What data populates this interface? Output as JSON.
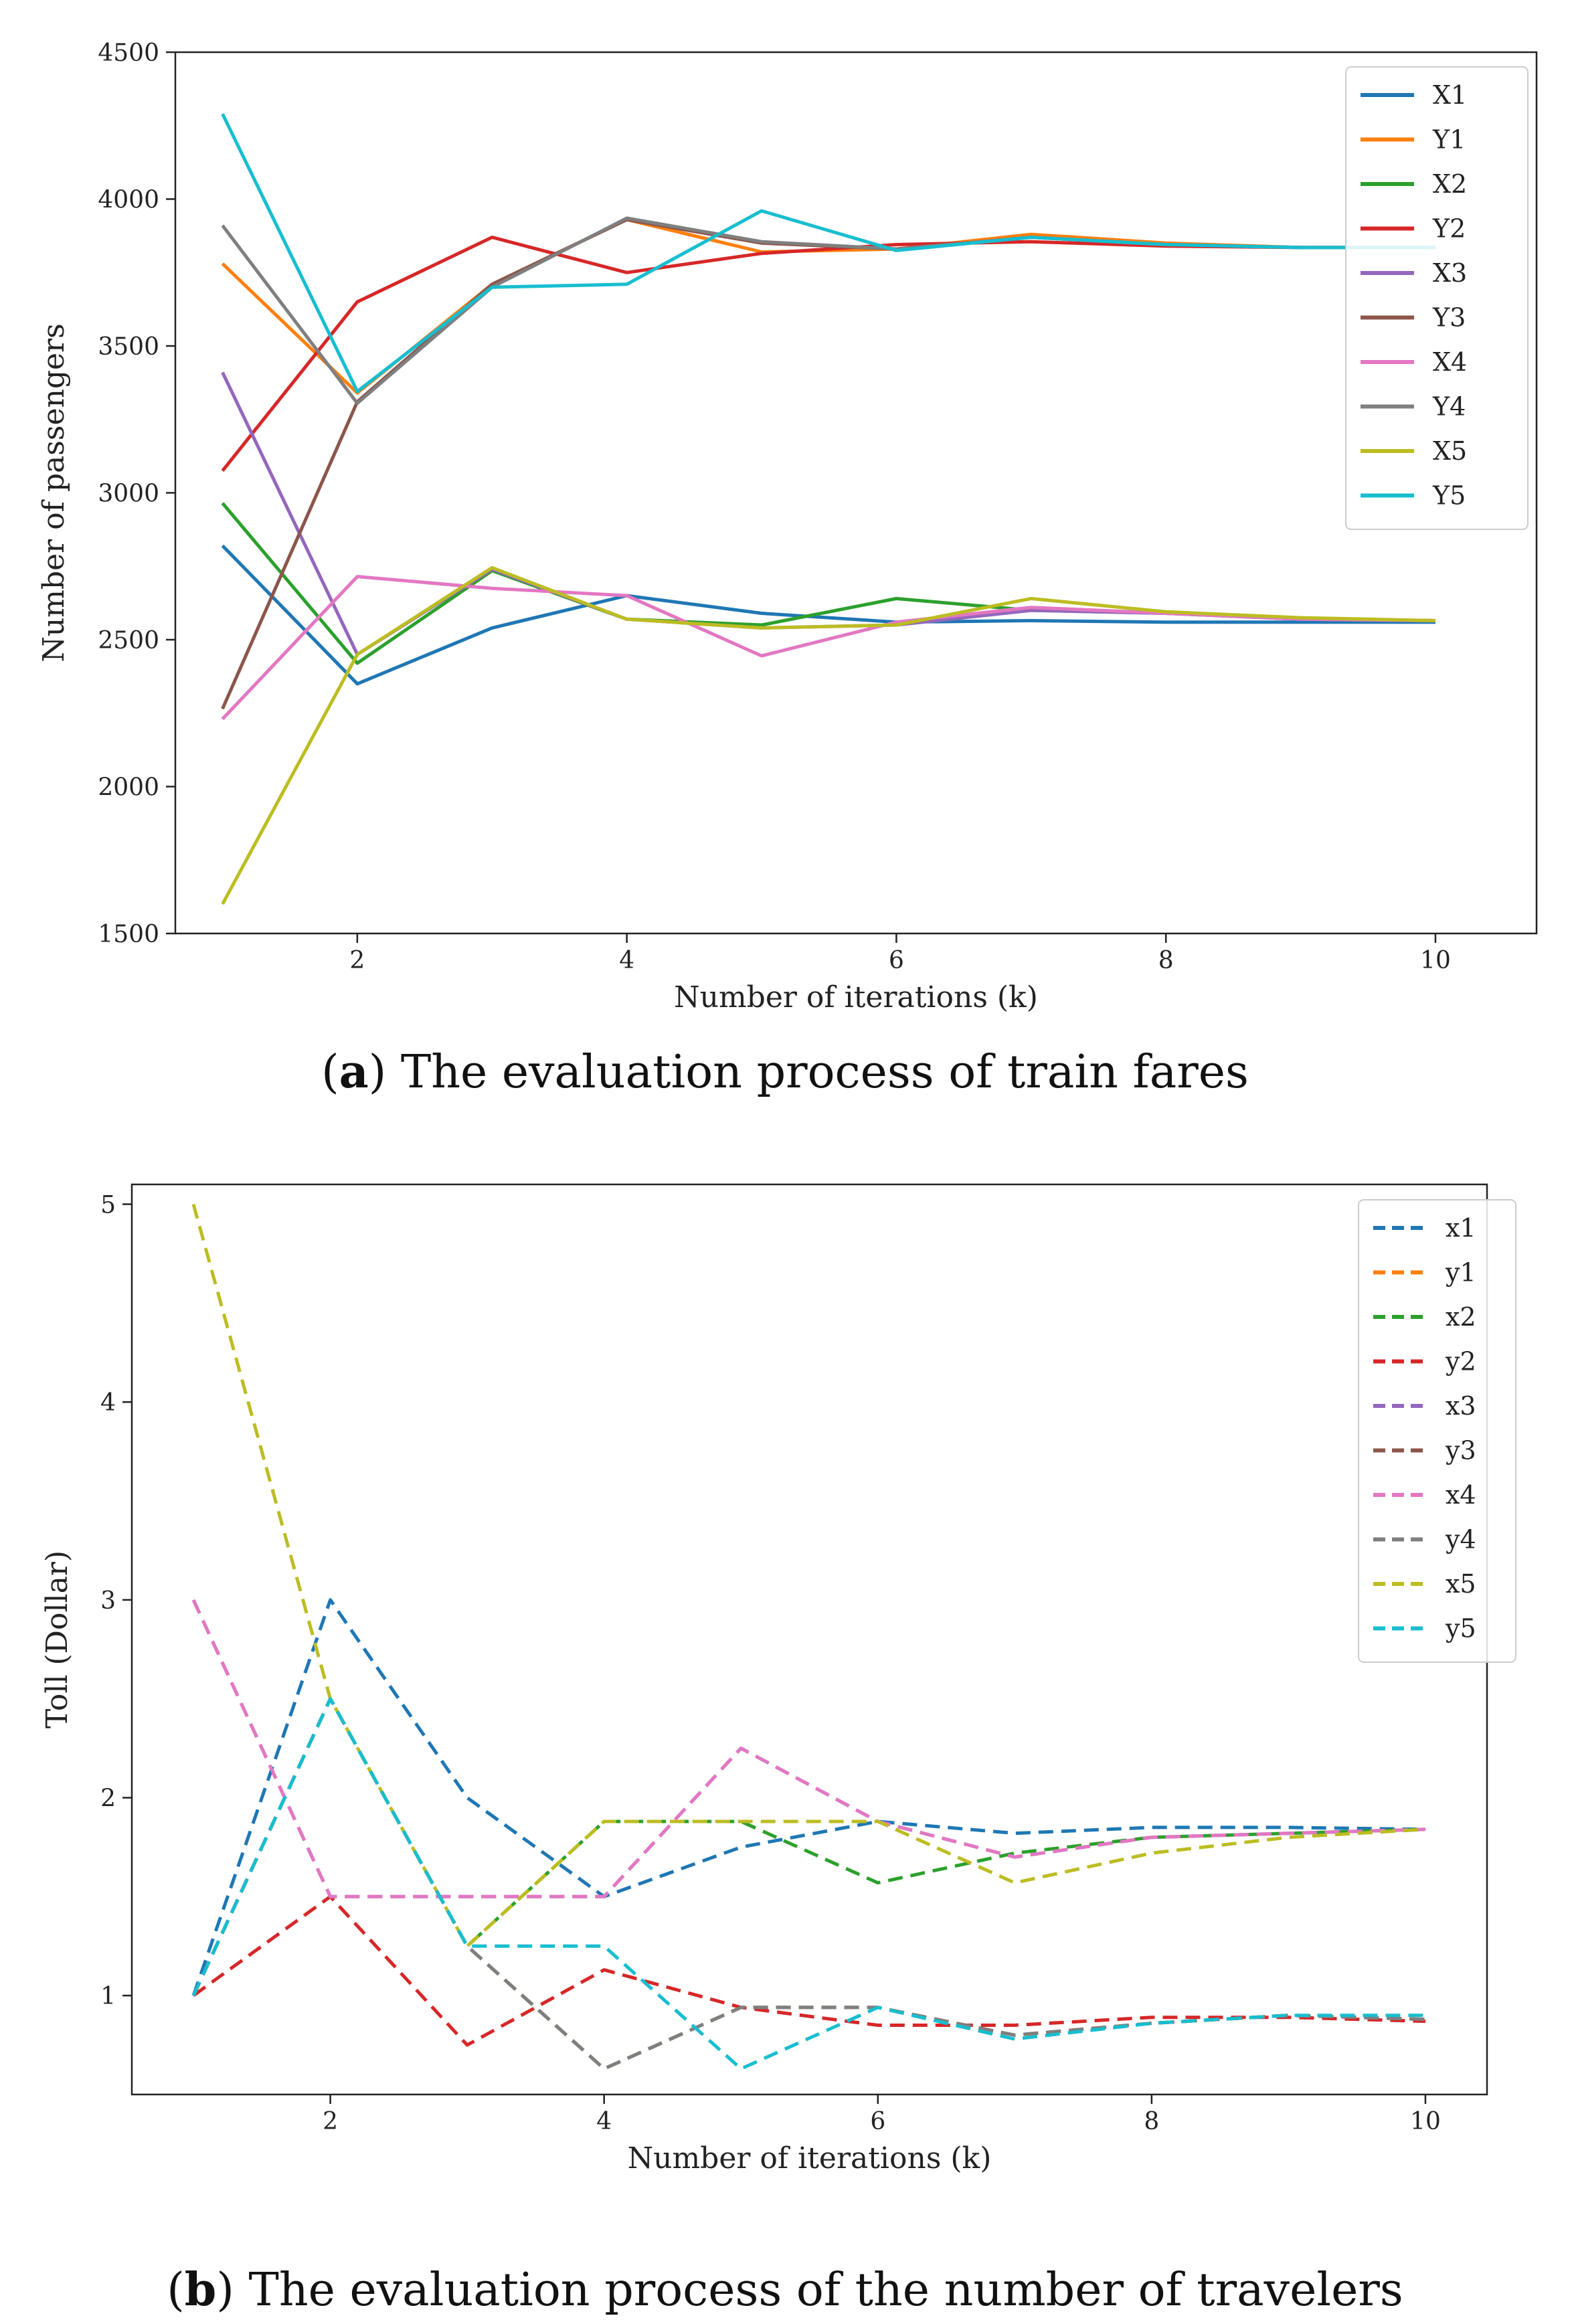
{
  "chart_data": [
    {
      "type": "line",
      "caption_letter": "a",
      "caption_text": ") The evaluation process of train fares",
      "caption_open": "(",
      "xlabel": "Number of iterations (k)",
      "ylabel": "Number of passengers",
      "xlim": [
        0.65,
        10.75
      ],
      "ylim": [
        1500,
        4500
      ],
      "xticks": [
        2,
        4,
        6,
        8,
        10
      ],
      "yticks": [
        1500,
        2000,
        2500,
        3000,
        3500,
        4000,
        4500
      ],
      "legend_position": "top-right",
      "dashed": false,
      "x": [
        1,
        2,
        3,
        4,
        5,
        6,
        7,
        8,
        9,
        10
      ],
      "series": [
        {
          "name": "X1",
          "color": "#1f77b4",
          "values": [
            2820,
            2350,
            2540,
            2650,
            2590,
            2560,
            2565,
            2560,
            2560,
            2560
          ]
        },
        {
          "name": "Y1",
          "color": "#ff7f0e",
          "values": [
            3780,
            3340,
            3710,
            3930,
            3820,
            3830,
            3880,
            3850,
            3835,
            3835
          ]
        },
        {
          "name": "X2",
          "color": "#2ca02c",
          "values": [
            2965,
            2420,
            2735,
            2570,
            2550,
            2640,
            2600,
            2590,
            2570,
            2565
          ]
        },
        {
          "name": "Y2",
          "color": "#d62728",
          "values": [
            3075,
            3650,
            3870,
            3750,
            3815,
            3845,
            3855,
            3840,
            3835,
            3835
          ]
        },
        {
          "name": "X3",
          "color": "#9467bd",
          "values": [
            3410,
            2450,
            2740,
            2570,
            2540,
            2550,
            2600,
            2590,
            2570,
            2565
          ]
        },
        {
          "name": "Y3",
          "color": "#8c564b",
          "values": [
            2265,
            3310,
            3710,
            3930,
            3850,
            3830,
            3870,
            3845,
            3835,
            3835
          ]
        },
        {
          "name": "X4",
          "color": "#e377c2",
          "values": [
            2230,
            2715,
            2675,
            2650,
            2445,
            2560,
            2610,
            2590,
            2570,
            2565
          ]
        },
        {
          "name": "Y4",
          "color": "#7f7f7f",
          "values": [
            3910,
            3305,
            3700,
            3935,
            3855,
            3830,
            3870,
            3845,
            3835,
            3835
          ]
        },
        {
          "name": "X5",
          "color": "#bcbd22",
          "values": [
            1600,
            2450,
            2745,
            2570,
            2540,
            2550,
            2640,
            2595,
            2575,
            2565
          ]
        },
        {
          "name": "Y5",
          "color": "#17becf",
          "values": [
            4290,
            3345,
            3700,
            3710,
            3960,
            3825,
            3870,
            3845,
            3835,
            3835
          ]
        }
      ]
    },
    {
      "type": "line",
      "caption_letter": "b",
      "caption_text": ") The evaluation process of the number of travelers",
      "caption_open": "(",
      "xlabel": "Number of iterations (k)",
      "ylabel": "Toll (Dollar)",
      "xlim": [
        0.55,
        10.45
      ],
      "ylim": [
        0.5,
        5.1
      ],
      "xticks": [
        2,
        4,
        6,
        8,
        10
      ],
      "yticks": [
        1,
        2,
        3,
        4,
        5
      ],
      "legend_position": "top-right",
      "dashed": true,
      "x": [
        1,
        2,
        3,
        4,
        5,
        6,
        7,
        8,
        9,
        10
      ],
      "series": [
        {
          "name": "x1",
          "color": "#1f77b4",
          "values": [
            1.0,
            3.0,
            2.0,
            1.5,
            1.75,
            1.88,
            1.82,
            1.85,
            1.85,
            1.84
          ]
        },
        {
          "name": "y1",
          "color": "#ff7f0e",
          "values": [
            1.0,
            2.5,
            1.25,
            0.63,
            0.94,
            0.94,
            0.8,
            0.86,
            0.9,
            0.88
          ]
        },
        {
          "name": "x2",
          "color": "#2ca02c",
          "values": [
            1.0,
            2.5,
            1.25,
            1.88,
            1.88,
            1.57,
            1.72,
            1.8,
            1.82,
            1.84
          ]
        },
        {
          "name": "y2",
          "color": "#d62728",
          "values": [
            1.0,
            1.5,
            0.75,
            1.13,
            0.94,
            0.85,
            0.85,
            0.89,
            0.89,
            0.87
          ]
        },
        {
          "name": "x3",
          "color": "#9467bd",
          "values": [
            3.0,
            1.5,
            1.5,
            1.5,
            2.25,
            1.88,
            1.7,
            1.8,
            1.82,
            1.84
          ]
        },
        {
          "name": "y3",
          "color": "#8c564b",
          "values": [
            1.0,
            2.5,
            1.25,
            0.63,
            0.94,
            0.94,
            0.8,
            0.86,
            0.9,
            0.88
          ]
        },
        {
          "name": "x4",
          "color": "#e377c2",
          "values": [
            3.0,
            1.5,
            1.5,
            1.5,
            2.25,
            1.88,
            1.7,
            1.8,
            1.82,
            1.84
          ]
        },
        {
          "name": "y4",
          "color": "#7f7f7f",
          "values": [
            1.0,
            2.5,
            1.25,
            0.63,
            0.94,
            0.94,
            0.8,
            0.86,
            0.9,
            0.88
          ]
        },
        {
          "name": "x5",
          "color": "#bcbd22",
          "values": [
            5.0,
            2.5,
            1.25,
            1.88,
            1.88,
            1.88,
            1.57,
            1.72,
            1.8,
            1.84
          ]
        },
        {
          "name": "y5",
          "color": "#17becf",
          "values": [
            1.0,
            2.5,
            1.25,
            1.25,
            0.63,
            0.94,
            0.78,
            0.86,
            0.9,
            0.9
          ]
        }
      ]
    }
  ]
}
